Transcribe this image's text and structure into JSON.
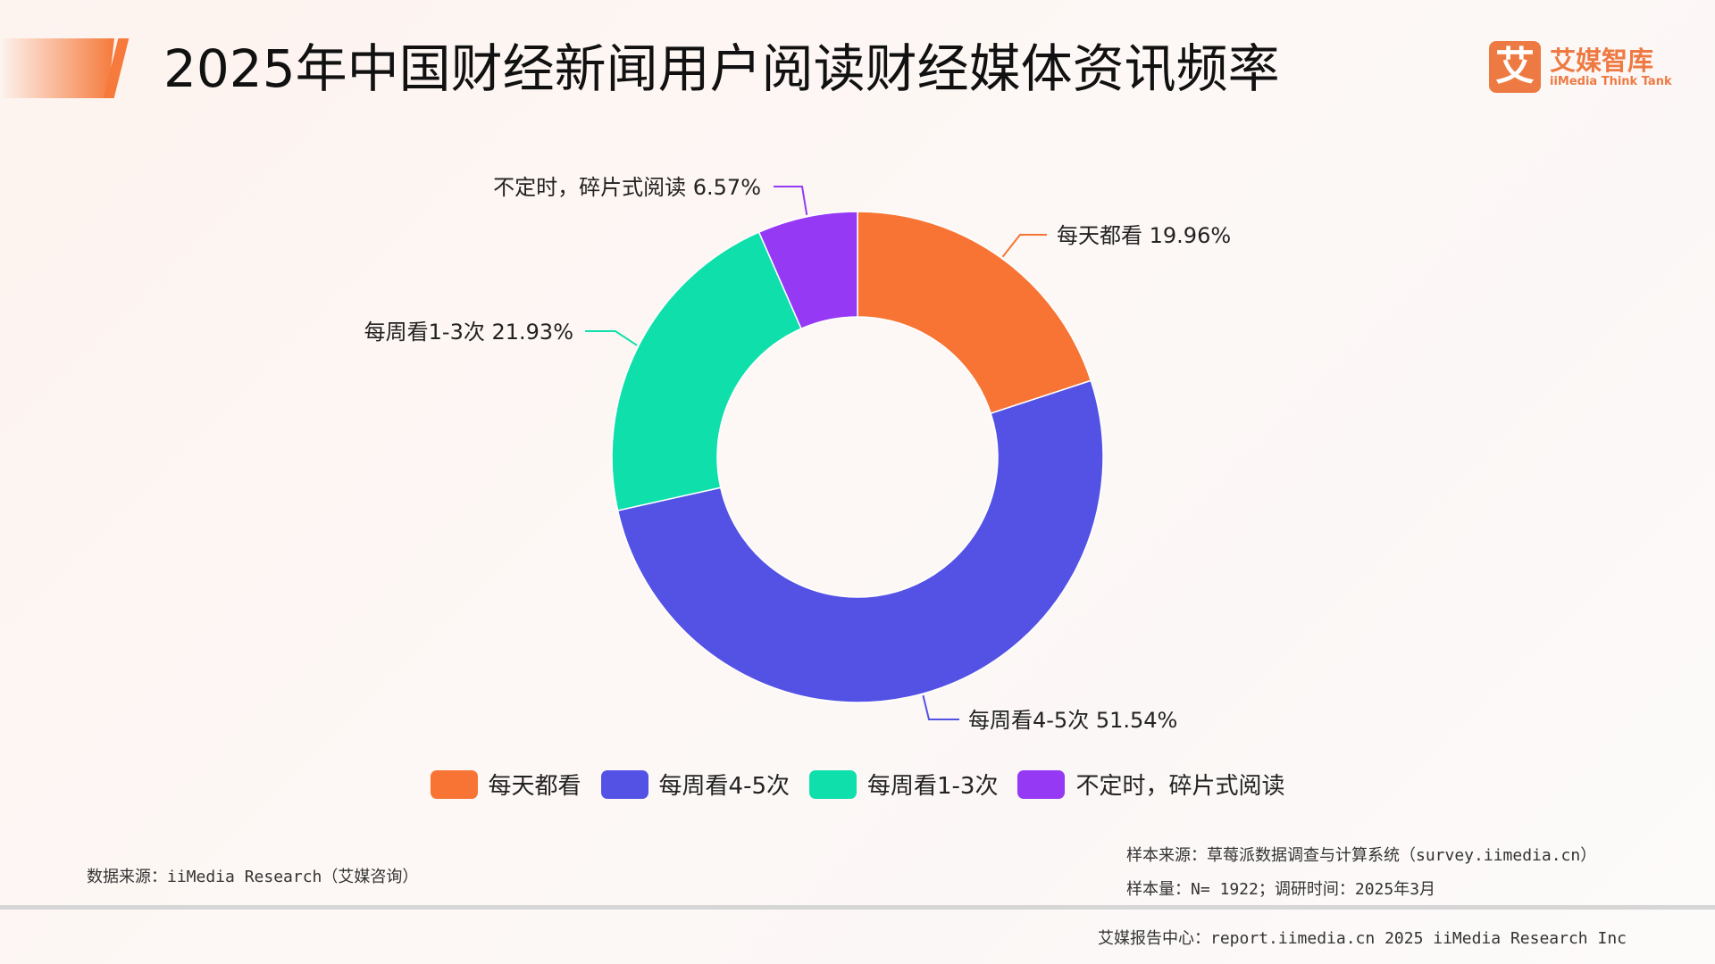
{
  "header": {
    "title": "2025年中国财经新闻用户阅读财经媒体资讯频率"
  },
  "logo": {
    "mark": "艾",
    "cn": "艾媒智库",
    "en": "iiMedia Think Tank"
  },
  "chart_data": {
    "type": "pie",
    "donut": true,
    "title": "2025年中国财经新闻用户阅读财经媒体资讯频率",
    "legend_position": "bottom",
    "unit": "%",
    "series": [
      {
        "name": "每天都看",
        "value": 19.96,
        "label": "每天都看 19.96%",
        "color": "#f87434"
      },
      {
        "name": "每周看4-5次",
        "value": 51.54,
        "label": "每周看4-5次 51.54%",
        "color": "#5452e4"
      },
      {
        "name": "每周看1-3次",
        "value": 21.93,
        "label": "每周看1-3次 21.93%",
        "color": "#0fe0ab"
      },
      {
        "name": "不定时，碎片式阅读",
        "value": 6.57,
        "label": "不定时，碎片式阅读 6.57%",
        "color": "#9539f4"
      }
    ]
  },
  "footer": {
    "source": "数据来源：iiMedia Research（艾媒咨询）",
    "sample_source": "样本来源：草莓派数据调查与计算系统（survey.iimedia.cn）",
    "sample_size": "样本量：N= 1922；调研时间：2025年3月",
    "report": "艾媒报告中心：report.iimedia.cn   2025 iiMedia Research Inc"
  }
}
